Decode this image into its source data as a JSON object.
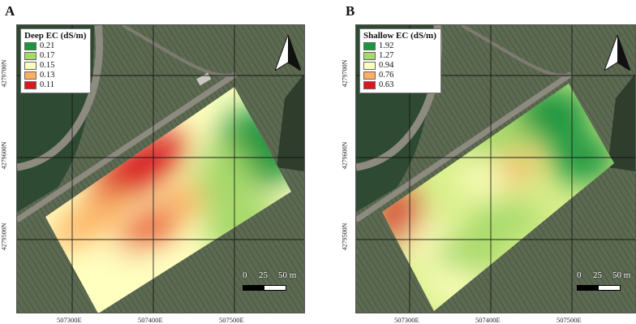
{
  "colors": {
    "green_dark": "#1a9641",
    "green_light": "#a6d96a",
    "yellow": "#ffffbf",
    "orange": "#fdae61",
    "red": "#d7191c",
    "imagery_green": "#3f5a3a",
    "imagery_field": "#5a6650",
    "road": "#8d8a80"
  },
  "panels": [
    {
      "letter": "A",
      "legend_title": "Deep EC (dS/m)",
      "legend": [
        {
          "label": "0.21",
          "color": "#1a9641"
        },
        {
          "label": "0.17",
          "color": "#a6d96a"
        },
        {
          "label": "0.15",
          "color": "#ffffbf"
        },
        {
          "label": "0.13",
          "color": "#fdae61"
        },
        {
          "label": "0.11",
          "color": "#d7191c"
        }
      ],
      "y_labels": [
        "4279700N",
        "4279600N",
        "4279500N"
      ],
      "x_labels": [
        "507300E",
        "507400E",
        "507500E"
      ],
      "scale": {
        "zero": "0",
        "mid": "25",
        "end": "50 m"
      },
      "north_icon": "north-arrow-icon"
    },
    {
      "letter": "B",
      "legend_title": "Shallow EC (dS/m)",
      "legend": [
        {
          "label": "1.92",
          "color": "#1a9641"
        },
        {
          "label": "1.27",
          "color": "#a6d96a"
        },
        {
          "label": "0.94",
          "color": "#ffffbf"
        },
        {
          "label": "0.76",
          "color": "#fdae61"
        },
        {
          "label": "0.63",
          "color": "#d7191c"
        }
      ],
      "y_labels": [
        "4279700N",
        "4279600N",
        "4279500N"
      ],
      "x_labels": [
        "507300E",
        "507400E",
        "507500E"
      ],
      "scale": {
        "zero": "0",
        "mid": "25",
        "end": "50 m"
      },
      "north_icon": "north-arrow-icon"
    }
  ]
}
